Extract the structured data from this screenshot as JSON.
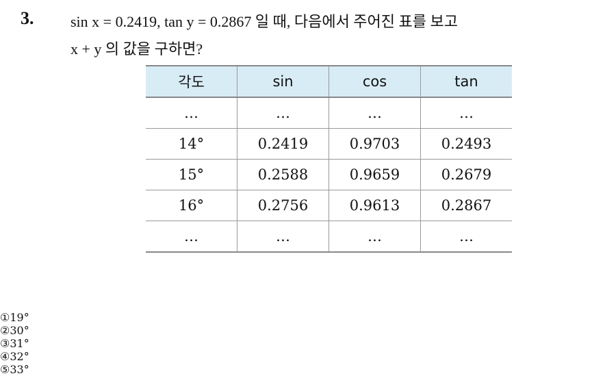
{
  "question": {
    "number": "3.",
    "line1": "sin x = 0.2419,  tan y = 0.2867 일 때, 다음에서 주어진 표를 보고",
    "line2": "x + y 의 값을 구하면?"
  },
  "table": {
    "header": [
      "각도",
      "sin",
      "cos",
      "tan"
    ],
    "rows": [
      [
        "…",
        "…",
        "…",
        "…"
      ],
      [
        "14°",
        "0.2419",
        "0.9703",
        "0.2493"
      ],
      [
        "15°",
        "0.2588",
        "0.9659",
        "0.2679"
      ],
      [
        "16°",
        "0.2756",
        "0.9613",
        "0.2867"
      ],
      [
        "…",
        "…",
        "…",
        "…"
      ]
    ]
  },
  "choices": [
    {
      "marker": "①",
      "text": "19°"
    },
    {
      "marker": "②",
      "text": "30°"
    },
    {
      "marker": "③",
      "text": "31°"
    },
    {
      "marker": "④",
      "text": "32°"
    },
    {
      "marker": "⑤",
      "text": "33°"
    }
  ]
}
